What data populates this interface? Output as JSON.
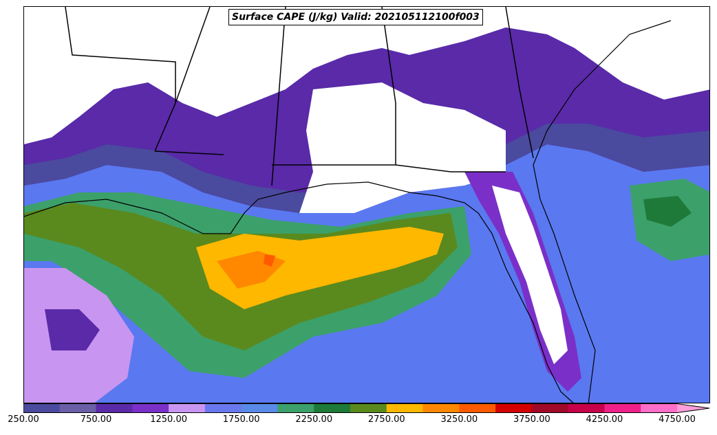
{
  "map": {
    "title": "Surface CAPE (J/kg) Valid: 202105112100f003"
  },
  "colorbar": {
    "tick_labels": [
      "250.00",
      "750.00",
      "1250.00",
      "1750.00",
      "2250.00",
      "2750.00",
      "3250.00",
      "3750.00",
      "4250.00",
      "4750.00"
    ],
    "colors": [
      "#4a4a9e",
      "#6b5fa8",
      "#5a2aa8",
      "#7a30c8",
      "#c896f0",
      "#6a78f0",
      "#5a8ae8",
      "#3ca06a",
      "#1e7a38",
      "#5a8a1e",
      "#ffb800",
      "#ff8800",
      "#ff5a00",
      "#d40000",
      "#a00a28",
      "#c8004a",
      "#f0208a",
      "#ff6ec8"
    ],
    "extend_color": "#ff9ed8"
  }
}
